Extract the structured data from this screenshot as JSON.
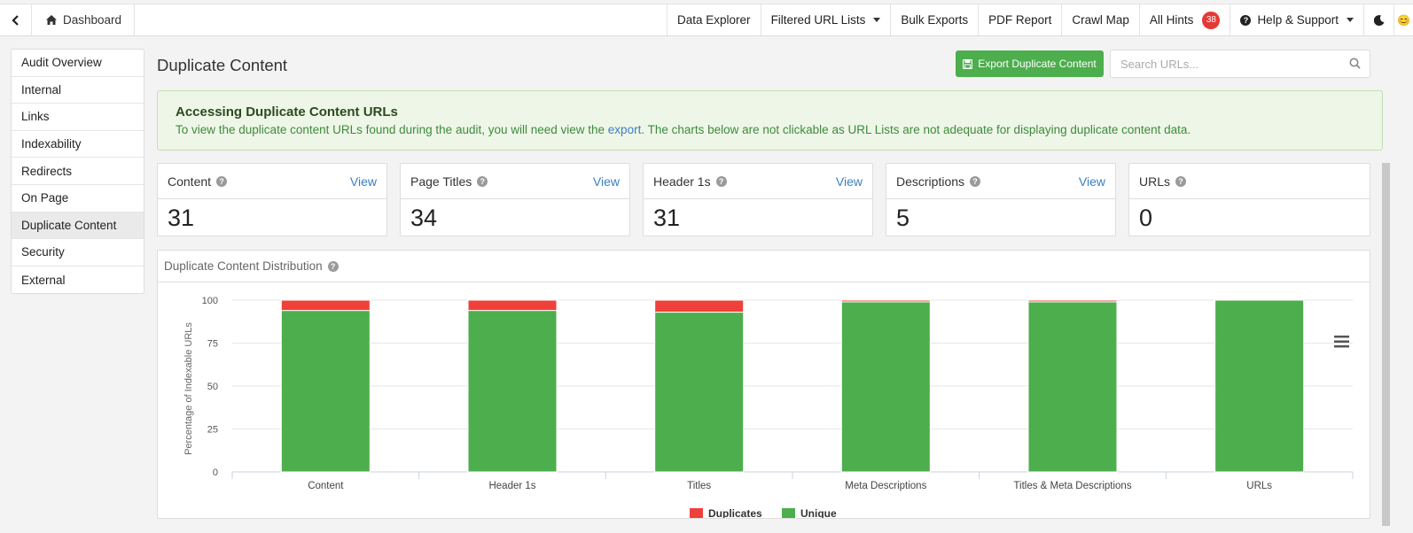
{
  "nav": {
    "dashboard": "Dashboard",
    "data_explorer": "Data Explorer",
    "filtered_url_lists": "Filtered URL Lists",
    "bulk_exports": "Bulk Exports",
    "pdf_report": "PDF Report",
    "crawl_map": "Crawl Map",
    "all_hints": "All Hints",
    "hints_count": "38",
    "help_support": "Help & Support",
    "avatar": "😊"
  },
  "sidebar": {
    "items": [
      {
        "label": "Audit Overview"
      },
      {
        "label": "Internal"
      },
      {
        "label": "Links"
      },
      {
        "label": "Indexability"
      },
      {
        "label": "Redirects"
      },
      {
        "label": "On Page"
      },
      {
        "label": "Duplicate Content"
      },
      {
        "label": "Security"
      },
      {
        "label": "External"
      }
    ],
    "active": "Duplicate Content"
  },
  "page": {
    "title": "Duplicate Content",
    "export_button": "Export Duplicate Content",
    "search_placeholder": "Search URLs..."
  },
  "alert": {
    "title": "Accessing Duplicate Content URLs",
    "text_before": "To view the duplicate content URLs found during the audit, you will need view the ",
    "link": "export",
    "text_after": ". The charts below are not clickable as URL Lists are not adequate for displaying duplicate content data."
  },
  "cards": [
    {
      "label": "Content",
      "value": "31",
      "view": "View"
    },
    {
      "label": "Page Titles",
      "value": "34",
      "view": "View"
    },
    {
      "label": "Header 1s",
      "value": "31",
      "view": "View"
    },
    {
      "label": "Descriptions",
      "value": "5",
      "view": "View"
    },
    {
      "label": "URLs",
      "value": "0",
      "view": ""
    }
  ],
  "chart_panel": {
    "title": "Duplicate Content Distribution"
  },
  "chart_data": {
    "type": "bar",
    "stacked": true,
    "categories": [
      "Content",
      "Header 1s",
      "Titles",
      "Meta Descriptions",
      "Titles & Meta Descriptions",
      "URLs"
    ],
    "series": [
      {
        "name": "Duplicates",
        "color": "#f0403a",
        "values": [
          6,
          6,
          7,
          1,
          1,
          0
        ]
      },
      {
        "name": "Unique",
        "color": "#4cae4c",
        "values": [
          94,
          94,
          93,
          99,
          99,
          100
        ]
      }
    ],
    "ylabel": "Percentage of Indexable URLs",
    "yticks": [
      0,
      25,
      50,
      75,
      100
    ],
    "ylim": [
      0,
      100
    ],
    "grid": true,
    "legend": "bottom-center"
  }
}
